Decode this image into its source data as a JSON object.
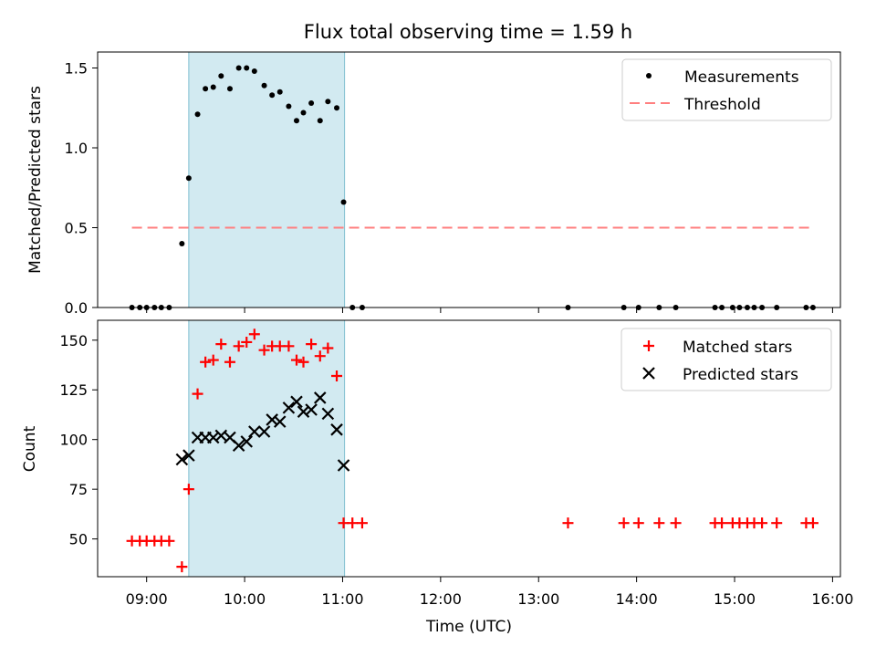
{
  "chart_data": {
    "type": "scatter",
    "title": "Flux total observing time = 1.59 h",
    "xlabel": "Time (UTC)",
    "x_unit": "hours UTC",
    "xlim": [
      8.5,
      16.08
    ],
    "x_tick_values": [
      9,
      10,
      11,
      12,
      13,
      14,
      15,
      16
    ],
    "x_tick_labels": [
      "09:00",
      "10:00",
      "11:00",
      "12:00",
      "13:00",
      "14:00",
      "15:00",
      "16:00"
    ],
    "observing_window": [
      9.43,
      11.02
    ],
    "window_color": "#add8e6",
    "panels": [
      {
        "name": "ratio",
        "ylabel": "Matched/Predicted stars",
        "ylim": [
          0,
          1.6
        ],
        "y_tick_values": [
          0,
          0.5,
          1.0,
          1.5
        ],
        "y_tick_labels": [
          "0.0",
          "0.5",
          "1.0",
          "1.5"
        ],
        "legend": [
          {
            "label": "Measurements",
            "marker": "dot",
            "color": "#000000"
          },
          {
            "label": "Threshold",
            "marker": "dashed-line",
            "color": "#ff7f7f"
          }
        ],
        "threshold": {
          "value": 0.5,
          "x_range": [
            8.85,
            15.8
          ],
          "color": "#ff7f7f"
        },
        "series": [
          {
            "name": "Measurements",
            "color": "#000000",
            "x": [
              8.85,
              8.93,
              9.0,
              9.08,
              9.15,
              9.23,
              9.36,
              9.43,
              9.52,
              9.6,
              9.68,
              9.76,
              9.85,
              9.94,
              10.02,
              10.1,
              10.2,
              10.28,
              10.36,
              10.45,
              10.53,
              10.6,
              10.68,
              10.77,
              10.85,
              10.94,
              11.01,
              11.1,
              11.2,
              13.3,
              13.87,
              14.02,
              14.23,
              14.4,
              14.8,
              14.87,
              14.98,
              15.05,
              15.13,
              15.2,
              15.28,
              15.43,
              15.73,
              15.8
            ],
            "y": [
              0,
              0,
              0,
              0,
              0,
              0,
              0.4,
              0.81,
              1.21,
              1.37,
              1.38,
              1.45,
              1.37,
              1.5,
              1.5,
              1.48,
              1.39,
              1.33,
              1.35,
              1.26,
              1.17,
              1.22,
              1.28,
              1.17,
              1.29,
              1.25,
              0.66,
              0,
              0,
              0,
              0,
              0,
              0,
              0,
              0,
              0,
              0,
              0,
              0,
              0,
              0,
              0,
              0,
              0
            ]
          }
        ]
      },
      {
        "name": "count",
        "ylabel": "Count",
        "ylim": [
          31,
          160
        ],
        "y_tick_values": [
          50,
          75,
          100,
          125,
          150
        ],
        "y_tick_labels": [
          "50",
          "75",
          "100",
          "125",
          "150"
        ],
        "legend": [
          {
            "label": "Matched stars",
            "marker": "plus",
            "color": "#ff0000"
          },
          {
            "label": "Predicted stars",
            "marker": "x",
            "color": "#000000"
          }
        ],
        "series": [
          {
            "name": "Matched stars",
            "marker": "plus",
            "color": "#ff0000",
            "x": [
              8.85,
              8.93,
              9.0,
              9.08,
              9.15,
              9.23,
              9.36,
              9.43,
              9.52,
              9.6,
              9.68,
              9.76,
              9.85,
              9.94,
              10.02,
              10.1,
              10.2,
              10.28,
              10.36,
              10.45,
              10.53,
              10.6,
              10.68,
              10.77,
              10.85,
              10.94,
              11.01,
              11.1,
              11.2,
              13.3,
              13.87,
              14.02,
              14.23,
              14.4,
              14.8,
              14.87,
              14.98,
              15.05,
              15.13,
              15.2,
              15.28,
              15.43,
              15.73,
              15.8
            ],
            "y": [
              49,
              49,
              49,
              49,
              49,
              49,
              36,
              75,
              123,
              139,
              140,
              148,
              139,
              147,
              149,
              153,
              145,
              147,
              147,
              147,
              140,
              139,
              148,
              142,
              146,
              132,
              58,
              58,
              58,
              58,
              58,
              58,
              58,
              58,
              58,
              58,
              58,
              58,
              58,
              58,
              58,
              58,
              58,
              58
            ]
          },
          {
            "name": "Predicted stars",
            "marker": "x",
            "color": "#000000",
            "x": [
              9.36,
              9.43,
              9.52,
              9.6,
              9.68,
              9.76,
              9.85,
              9.94,
              10.02,
              10.1,
              10.2,
              10.28,
              10.36,
              10.45,
              10.53,
              10.6,
              10.68,
              10.77,
              10.85,
              10.94,
              11.01
            ],
            "y": [
              90,
              92,
              101,
              101,
              101,
              102,
              101,
              97,
              99,
              104,
              104,
              110,
              109,
              116,
              119,
              114,
              115,
              121,
              113,
              105,
              87
            ]
          }
        ]
      }
    ]
  }
}
